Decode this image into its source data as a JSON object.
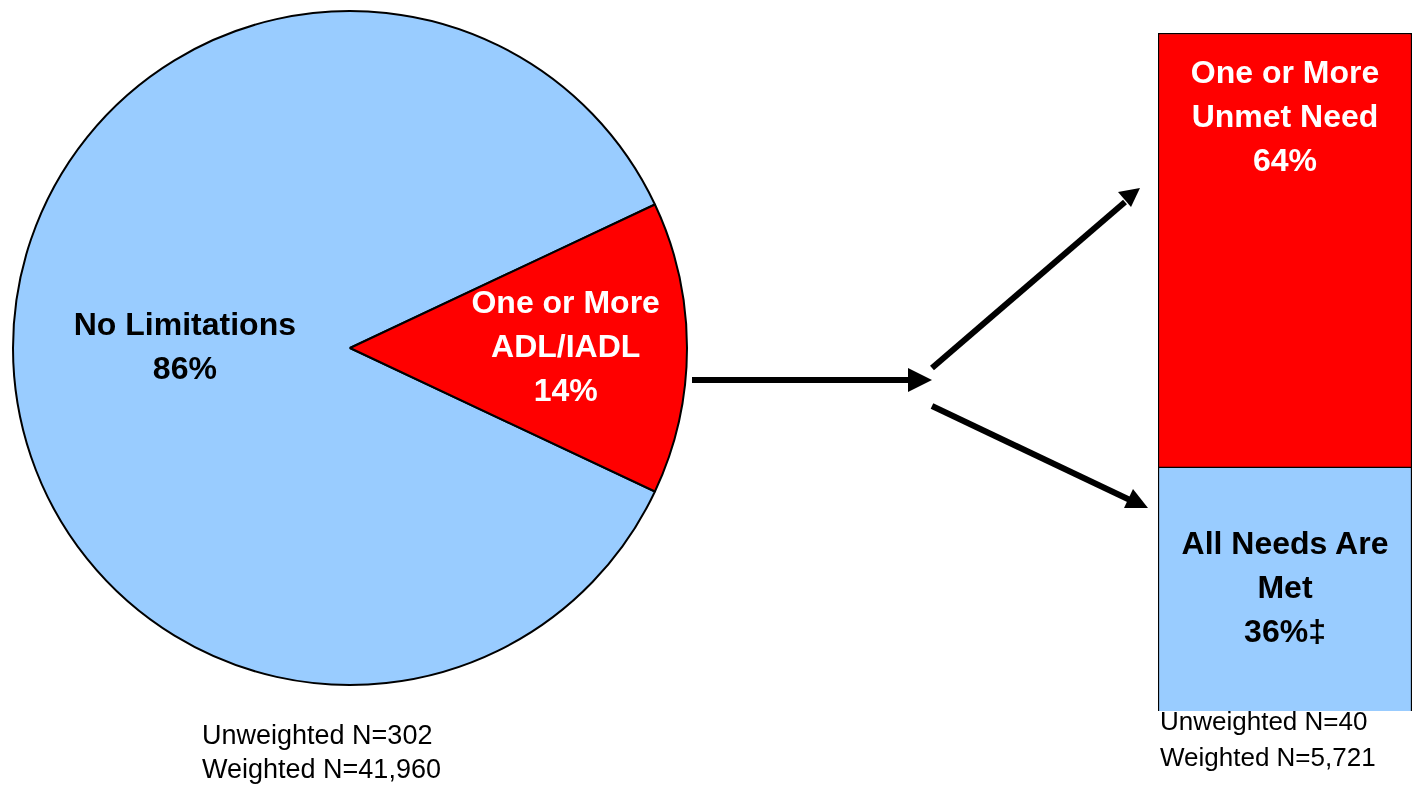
{
  "chart_data": [
    {
      "type": "pie",
      "categories": [
        "No Limitations",
        "One or More ADL/IADL"
      ],
      "values": [
        86,
        14
      ],
      "colors": [
        "#99ccff",
        "#ff0000"
      ],
      "value_labels": [
        "86%",
        "14%"
      ],
      "legend": false,
      "annotations": [
        "Unweighted N=302",
        "Weighted N=41,960"
      ]
    },
    {
      "type": "bar",
      "stacked": true,
      "categories": [
        null
      ],
      "tick_labels": false,
      "legend": false,
      "series": [
        {
          "name": "All Needs Are Met",
          "color": "#99ccff",
          "values": [
            36
          ],
          "value_labels": [
            "36%‡"
          ]
        },
        {
          "name": "One or More Unmet Need",
          "color": "#ff0000",
          "values": [
            64
          ],
          "value_labels": [
            "64%"
          ]
        }
      ],
      "annotations": [
        "Unweighted N=40",
        "Weighted N=5,721"
      ]
    }
  ]
}
